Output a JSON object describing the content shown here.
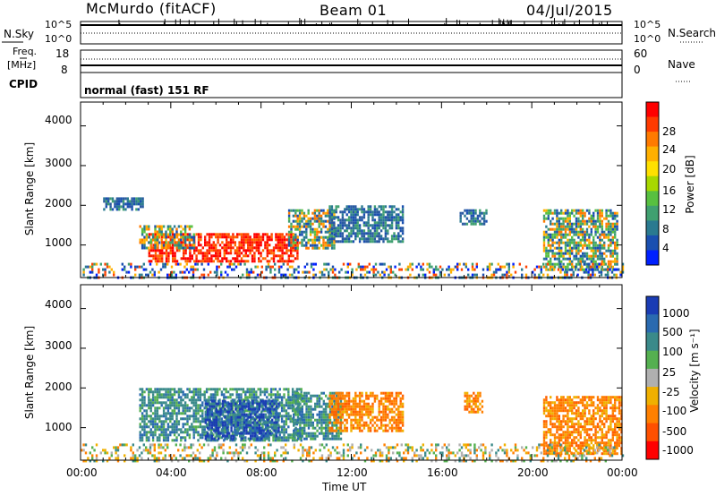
{
  "header": {
    "station": "McMurdo (fitACF)",
    "beam": "Beam 01",
    "date": "04/Jul/2015"
  },
  "top_panel": {
    "left_label": "N.Sky",
    "right_label": "N.Search",
    "left_ticks": [
      "10^5",
      "10^0"
    ],
    "right_ticks": [
      "10^5",
      "10^0"
    ]
  },
  "freq_panel": {
    "left_label_1": "Freq.",
    "left_label_2": "[MHz]",
    "right_label": "Nave",
    "left_ticks": [
      "18",
      "8"
    ],
    "right_ticks": [
      "60",
      "0"
    ]
  },
  "cpid": {
    "label": "CPID",
    "mode": "normal (fast) 151 RF"
  },
  "power_panel": {
    "ylabel": "Slant Range [km]",
    "cbar_label": "Power [dB]",
    "cbar_ticks": [
      "28",
      "24",
      "20",
      "16",
      "12",
      "8",
      "4"
    ],
    "cbar_colors": [
      "#ff0000",
      "#ff3a00",
      "#ff7a00",
      "#ffb000",
      "#ffe000",
      "#a8d800",
      "#58c040",
      "#40a070",
      "#2a7a90",
      "#1a4fb0",
      "#0020ff"
    ]
  },
  "velocity_panel": {
    "ylabel": "Slant Range [km]",
    "cbar_label": "Velocity [m s⁻¹]",
    "cbar_ticks": [
      "1000",
      "500",
      "100",
      "25",
      "-25",
      "-100",
      "-500",
      "-1000"
    ],
    "cbar_colors": [
      "#1a3cb4",
      "#2a6ab0",
      "#3a8a8a",
      "#55b050",
      "#b0b0b0",
      "#f0b000",
      "#ff8000",
      "#ff5000",
      "#ff0000"
    ]
  },
  "chart_data": {
    "type": "heatmap",
    "x_ticks": [
      "00:00",
      "04:00",
      "08:00",
      "12:00",
      "16:00",
      "20:00",
      "00:00"
    ],
    "xlabel": "Time UT",
    "y_ticks": [
      "1000",
      "2000",
      "3000",
      "4000"
    ],
    "xlim_hours": [
      0,
      24
    ],
    "ylim_km": [
      180,
      4600
    ],
    "power_regions": [
      {
        "t0": 3.0,
        "t1": 9.6,
        "r0": 600,
        "r1": 1300,
        "level": "high"
      },
      {
        "t0": 2.6,
        "t1": 5.0,
        "r0": 900,
        "r1": 1500,
        "level": "mid"
      },
      {
        "t0": 9.2,
        "t1": 11.2,
        "r0": 900,
        "r1": 1900,
        "level": "mid"
      },
      {
        "t0": 11.0,
        "t1": 14.3,
        "r0": 1100,
        "r1": 2000,
        "level": "low"
      },
      {
        "t0": 1.0,
        "t1": 2.8,
        "r0": 1900,
        "r1": 2200,
        "level": "low"
      },
      {
        "t0": 16.8,
        "t1": 18.0,
        "r0": 1500,
        "r1": 1900,
        "level": "low"
      },
      {
        "t0": 20.5,
        "t1": 23.8,
        "r0": 400,
        "r1": 1900,
        "level": "mid"
      },
      {
        "t0": 0.0,
        "t1": 24.0,
        "r0": 180,
        "r1": 550,
        "level": "mixed"
      }
    ],
    "velocity_regions": [
      {
        "t0": 2.6,
        "t1": 9.8,
        "r0": 700,
        "r1": 2000,
        "sign": "positive"
      },
      {
        "t0": 5.5,
        "t1": 8.8,
        "r0": 700,
        "r1": 1700,
        "sign": "strong-positive"
      },
      {
        "t0": 9.4,
        "t1": 11.5,
        "r0": 700,
        "r1": 1900,
        "sign": "positive"
      },
      {
        "t0": 11.0,
        "t1": 14.3,
        "r0": 900,
        "r1": 1900,
        "sign": "negative"
      },
      {
        "t0": 17.0,
        "t1": 17.8,
        "r0": 1400,
        "r1": 1900,
        "sign": "negative"
      },
      {
        "t0": 20.5,
        "t1": 24.0,
        "r0": 350,
        "r1": 1800,
        "sign": "negative"
      },
      {
        "t0": 0.0,
        "t1": 24.0,
        "r0": 180,
        "r1": 600,
        "sign": "mixed"
      }
    ]
  }
}
